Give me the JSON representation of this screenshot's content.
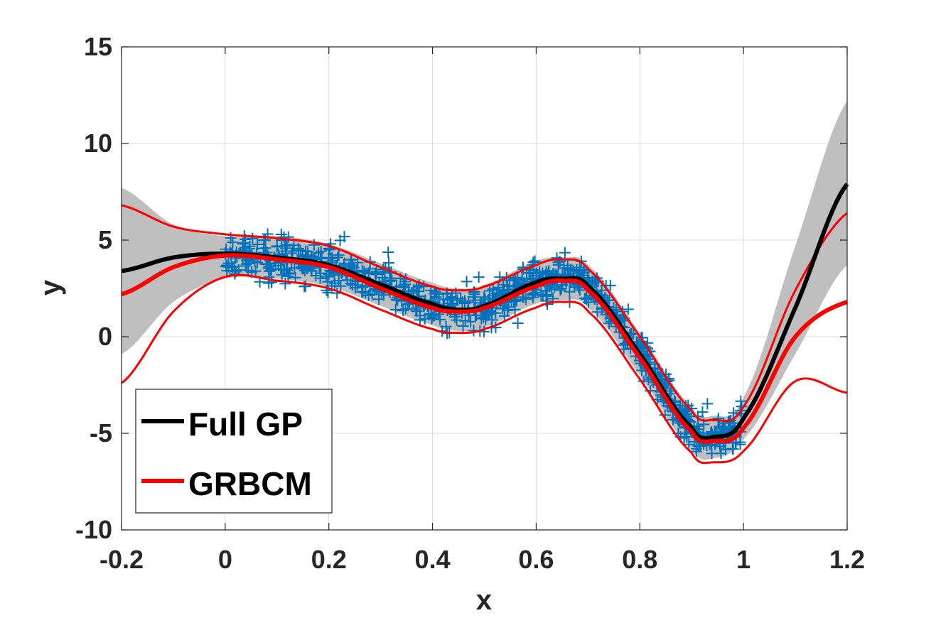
{
  "chart_data": {
    "type": "line",
    "xlabel": "x",
    "ylabel": "y",
    "xlim": [
      -0.2,
      1.2
    ],
    "ylim": [
      -10,
      15
    ],
    "xticks": [
      -0.2,
      0,
      0.2,
      0.4,
      0.6,
      0.8,
      1,
      1.2
    ],
    "yticks": [
      -10,
      -5,
      0,
      5,
      10,
      15
    ],
    "xtick_labels": [
      "-0.2",
      "0",
      "0.2",
      "0.4",
      "0.6",
      "0.8",
      "1",
      "1.2"
    ],
    "ytick_labels": [
      "-10",
      "-5",
      "0",
      "5",
      "10",
      "15"
    ],
    "grid": true,
    "legend_position": "bottom-left",
    "legend": [
      "Full GP",
      "GRBCM"
    ],
    "series": [
      {
        "name": "Full GP",
        "color": "#000000",
        "x": [
          -0.2,
          -0.1,
          0,
          0.1,
          0.2,
          0.3,
          0.4,
          0.45,
          0.5,
          0.6,
          0.65,
          0.7,
          0.8,
          0.9,
          0.94,
          1.0,
          1.1,
          1.2
        ],
        "y": [
          3.4,
          4.1,
          4.3,
          4.1,
          3.7,
          2.7,
          1.7,
          1.4,
          1.6,
          2.8,
          3.0,
          2.6,
          -0.9,
          -4.7,
          -5.2,
          -4.2,
          1.5,
          7.9
        ],
        "band_lower": [
          -0.9,
          1.8,
          3.0,
          3.0,
          2.6,
          1.6,
          0.6,
          0.3,
          0.5,
          1.7,
          1.9,
          1.5,
          -2.0,
          -5.8,
          -6.3,
          -5.3,
          -0.9,
          3.7
        ],
        "band_upper": [
          7.7,
          5.8,
          5.2,
          5.2,
          4.8,
          3.8,
          2.8,
          2.5,
          2.7,
          3.9,
          4.1,
          3.7,
          0.2,
          -3.6,
          -4.1,
          -3.1,
          4.7,
          12.2
        ],
        "band_color": "#bfbfbf"
      },
      {
        "name": "GRBCM",
        "color": "#ff0000",
        "x": [
          -0.2,
          -0.1,
          0,
          0.1,
          0.2,
          0.3,
          0.4,
          0.45,
          0.5,
          0.6,
          0.65,
          0.7,
          0.8,
          0.9,
          0.94,
          1.0,
          1.1,
          1.2
        ],
        "y": [
          2.2,
          3.6,
          4.2,
          4.0,
          3.6,
          2.5,
          1.5,
          1.3,
          1.5,
          2.6,
          2.9,
          2.4,
          -1.1,
          -4.9,
          -5.4,
          -4.7,
          0.0,
          1.8
        ],
        "lower": [
          -2.4,
          1.3,
          3.1,
          2.9,
          2.5,
          1.4,
          0.4,
          0.2,
          0.4,
          1.5,
          1.8,
          1.3,
          -2.2,
          -6.0,
          -6.5,
          -5.9,
          -2.3,
          -2.9
        ],
        "upper": [
          6.8,
          5.7,
          5.3,
          5.1,
          4.7,
          3.6,
          2.6,
          2.4,
          2.6,
          3.7,
          4.0,
          3.5,
          0.0,
          -3.8,
          -4.3,
          -3.6,
          2.4,
          6.4
        ]
      },
      {
        "name": "",
        "type": "scatter",
        "marker": "+",
        "color": "#0072bd",
        "x_range": [
          0,
          1
        ],
        "noise": 1.0
      }
    ]
  }
}
